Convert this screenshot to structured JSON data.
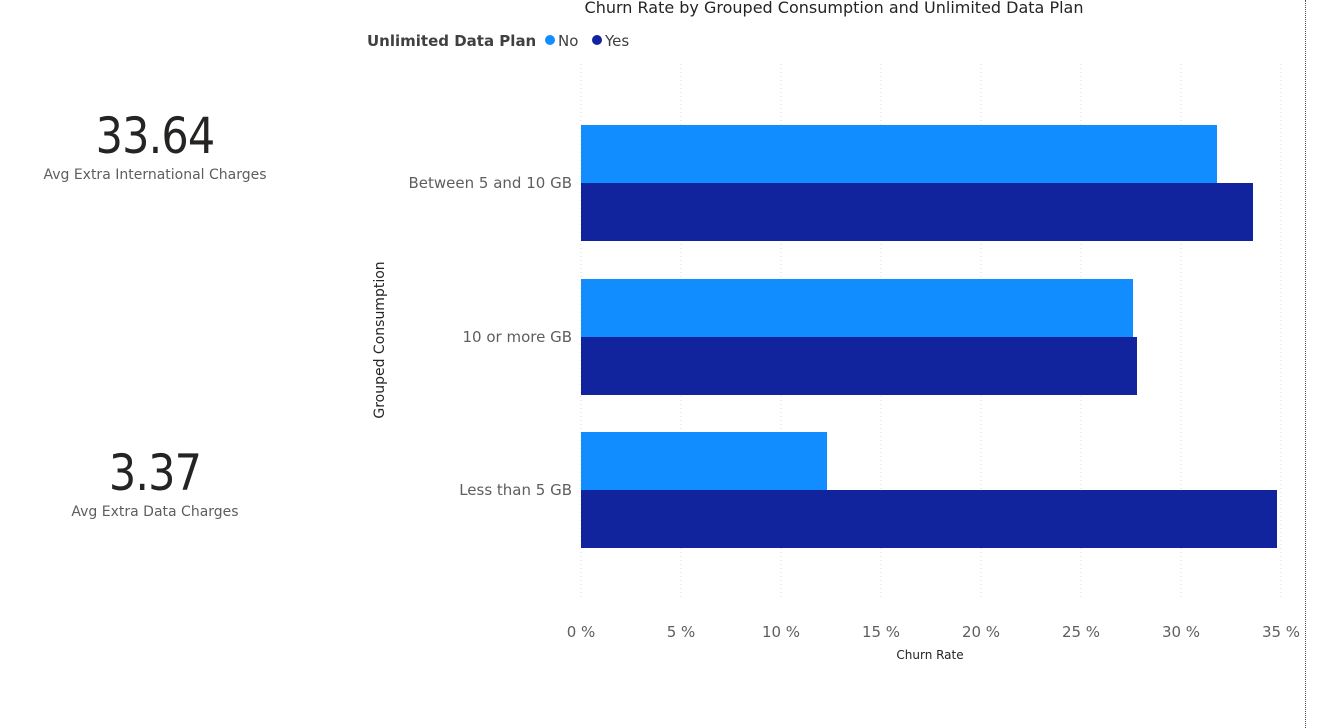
{
  "cards": [
    {
      "value": "33.64",
      "label": "Avg Extra International Charges"
    },
    {
      "value": "3.37",
      "label": "Avg Extra Data Charges"
    }
  ],
  "colors": {
    "No": "#118DFF",
    "Yes": "#12239E",
    "grid": "#d9d9d9",
    "text": "#605e5c",
    "title": "#252423"
  },
  "chart_data": {
    "type": "bar",
    "orientation": "horizontal",
    "title": "Churn Rate by Grouped Consumption and Unlimited Data Plan",
    "legend_title": "Unlimited Data Plan",
    "legend_position": "top-left",
    "categories": [
      "Between 5 and 10 GB",
      "10 or more GB",
      "Less than 5 GB"
    ],
    "series": [
      {
        "name": "No",
        "values": [
          31.8,
          27.6,
          12.3
        ]
      },
      {
        "name": "Yes",
        "values": [
          33.6,
          27.8,
          34.8
        ]
      }
    ],
    "xlabel": "Churn Rate",
    "ylabel": "Grouped Consumption",
    "xlim": [
      0,
      35
    ],
    "xticks": [
      "0 %",
      "5 %",
      "10 %",
      "15 %",
      "20 %",
      "25 %",
      "30 %",
      "35 %"
    ],
    "grid": "vertical dotted"
  }
}
